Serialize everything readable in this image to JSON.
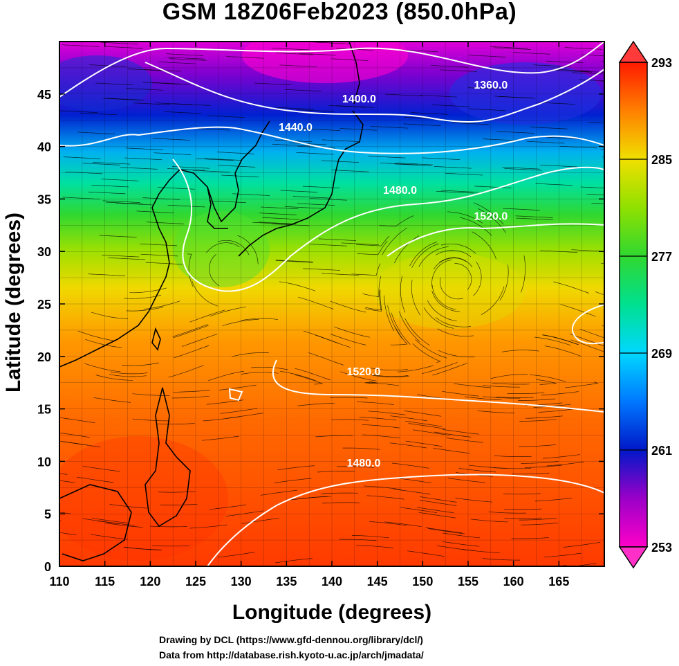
{
  "title": "GSM 18Z06Feb2023 (850.0hPa)",
  "xlabel": "Longitude (degrees)",
  "ylabel": "Latitude  (degrees)",
  "credits": [
    "Drawing by DCL (https://www.gfd-dennou.org/library/dcl/)",
    "Data from http://database.rish.kyoto-u.ac.jp/arch/jmadata/"
  ],
  "chart_data": {
    "type": "heatmap",
    "map_extent": {
      "lon": [
        110,
        170
      ],
      "lat": [
        0,
        50
      ]
    },
    "x_ticks": [
      "110",
      "115",
      "120",
      "125",
      "130",
      "135",
      "140",
      "145",
      "150",
      "155",
      "160",
      "165"
    ],
    "y_ticks": [
      "0",
      "5",
      "10",
      "15",
      "20",
      "25",
      "30",
      "35",
      "40",
      "45"
    ],
    "colorbar": {
      "min": 253,
      "max": 293,
      "ticks": [
        "253",
        "261",
        "269",
        "277",
        "285",
        "293"
      ],
      "colors": [
        "#ff00c8",
        "#9a00c8",
        "#0018c8",
        "#0078ff",
        "#00d8ff",
        "#00e090",
        "#30d830",
        "#90e000",
        "#f0e000",
        "#ff9000",
        "#ff3000",
        "#ff1a00"
      ]
    },
    "contour_labels": [
      {
        "text": "1360.0",
        "lon": 157.5,
        "lat": 45.5
      },
      {
        "text": "1400.0",
        "lon": 143.0,
        "lat": 44.2
      },
      {
        "text": "1440.0",
        "lon": 136.0,
        "lat": 41.5
      },
      {
        "text": "1480.0",
        "lon": 147.5,
        "lat": 35.5
      },
      {
        "text": "1520.0",
        "lon": 157.5,
        "lat": 33.0
      },
      {
        "text": "1520.0",
        "lon": 143.5,
        "lat": 18.2
      },
      {
        "text": "1480.0",
        "lon": 143.5,
        "lat": 9.5
      }
    ]
  }
}
